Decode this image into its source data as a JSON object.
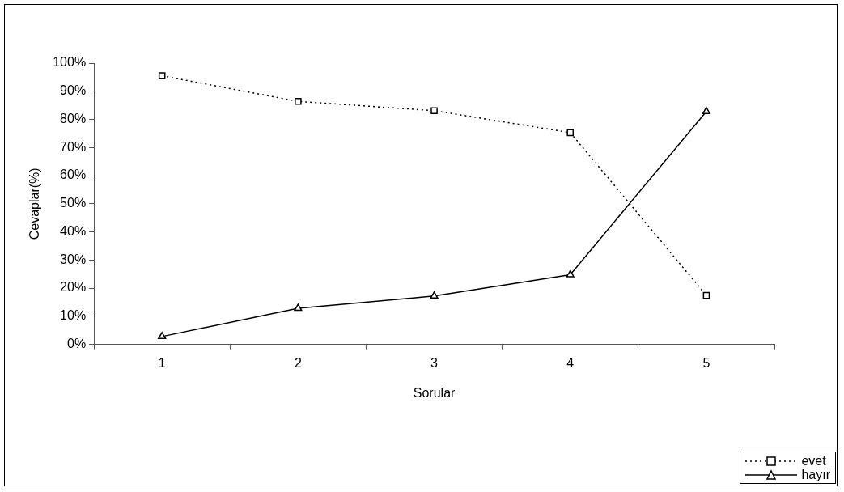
{
  "chart_data": {
    "type": "line",
    "xlabel": "Sorular",
    "ylabel": "Cevaplar(%)",
    "categories": [
      "1",
      "2",
      "3",
      "4",
      "5"
    ],
    "series": [
      {
        "name": "evet",
        "color": "#000000",
        "values": [
          95.5,
          86.4,
          83.1,
          75.3,
          17.4
        ],
        "marker": "square",
        "line_style": "dotted"
      },
      {
        "name": "hayır",
        "color": "#000000",
        "values": [
          2.8,
          12.8,
          17.2,
          24.8,
          82.8
        ],
        "marker": "triangle",
        "line_style": "solid"
      }
    ],
    "ylim": [
      0,
      100
    ],
    "yticks": [
      {
        "value": 0,
        "label": "0%"
      },
      {
        "value": 10,
        "label": "10%"
      },
      {
        "value": 20,
        "label": "20%"
      },
      {
        "value": 30,
        "label": "30%"
      },
      {
        "value": 40,
        "label": "40%"
      },
      {
        "value": 50,
        "label": "50%"
      },
      {
        "value": 60,
        "label": "60%"
      },
      {
        "value": 70,
        "label": "70%"
      },
      {
        "value": 80,
        "label": "80%"
      },
      {
        "value": 90,
        "label": "90%"
      },
      {
        "value": 100,
        "label": "100%"
      }
    ],
    "grid": false,
    "legend": "bottom right"
  }
}
